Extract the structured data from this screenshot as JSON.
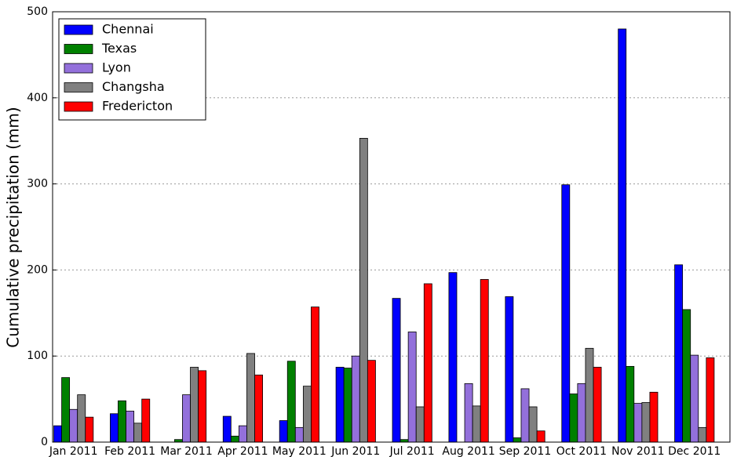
{
  "chart_data": {
    "type": "bar",
    "y_label": "Cumulative precipitation (mm)",
    "categories": [
      "Jan 2011",
      "Feb 2011",
      "Mar 2011",
      "Apr 2011",
      "May 2011",
      "Jun 2011",
      "Jul 2011",
      "Aug 2011",
      "Sep 2011",
      "Oct 2011",
      "Nov 2011",
      "Dec 2011"
    ],
    "series": [
      {
        "name": "Chennai",
        "color": "#0000ff",
        "values": [
          19,
          33,
          0,
          30,
          25,
          87,
          167,
          197,
          169,
          299,
          480,
          206
        ]
      },
      {
        "name": "Texas",
        "color": "#008000",
        "values": [
          75,
          48,
          3,
          7,
          94,
          86,
          3,
          0,
          5,
          56,
          88,
          154
        ]
      },
      {
        "name": "Lyon",
        "color": "#9370db",
        "values": [
          38,
          36,
          55,
          19,
          17,
          100,
          128,
          68,
          62,
          68,
          45,
          101
        ]
      },
      {
        "name": "Changsha",
        "color": "#808080",
        "values": [
          55,
          22,
          87,
          103,
          65,
          353,
          41,
          42,
          41,
          109,
          46,
          17
        ]
      },
      {
        "name": "Fredericton",
        "color": "#ff0000",
        "values": [
          29,
          50,
          83,
          78,
          157,
          95,
          184,
          189,
          13,
          87,
          58,
          98
        ]
      }
    ],
    "ylim": [
      0,
      500
    ],
    "yticks": [
      0,
      100,
      200,
      300,
      400,
      500
    ],
    "grid": true,
    "legend": "upper left"
  }
}
